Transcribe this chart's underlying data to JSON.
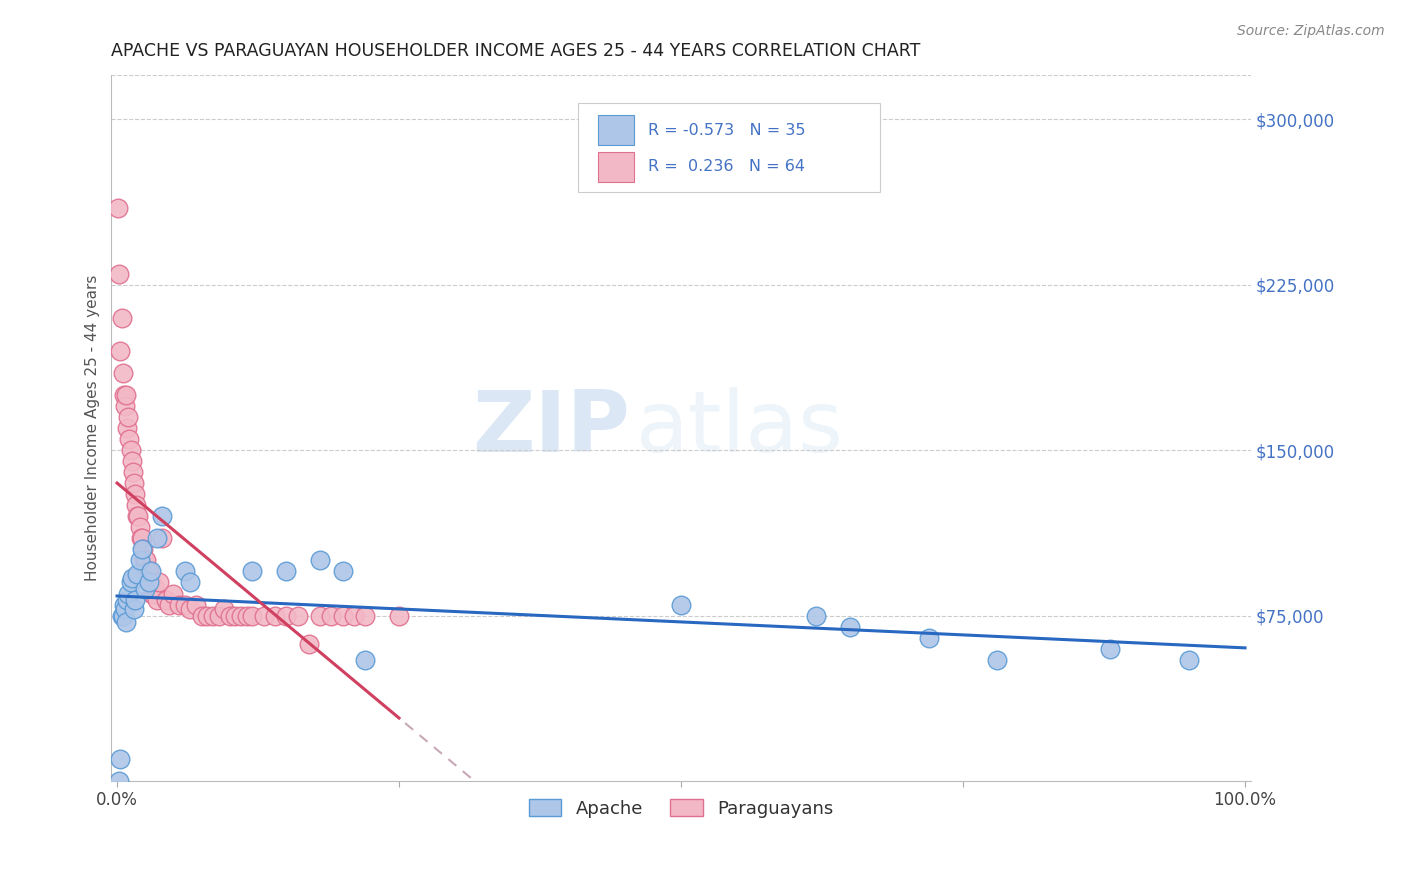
{
  "title": "APACHE VS PARAGUAYAN HOUSEHOLDER INCOME AGES 25 - 44 YEARS CORRELATION CHART",
  "source": "Source: ZipAtlas.com",
  "ylabel": "Householder Income Ages 25 - 44 years",
  "ytick_values": [
    75000,
    150000,
    225000,
    300000
  ],
  "ylim": [
    0,
    320000
  ],
  "xlim": [
    -0.005,
    1.005
  ],
  "apache_color": "#aec6e8",
  "apache_edge_color": "#5b9bd5",
  "paraguayan_color": "#f2b8c6",
  "paraguayan_edge_color": "#e07090",
  "trend_apache_color": "#2868c0",
  "trend_paraguayan_color": "#d04060",
  "trend_paraguayan_dashed_color": "#c8a8b8",
  "legend_label_apache": "Apache",
  "legend_label_paraguayan": "Paraguayans",
  "R_apache": -0.573,
  "N_apache": 35,
  "R_paraguayan": 0.236,
  "N_paraguayan": 64,
  "watermark_zip": "ZIP",
  "watermark_atlas": "atlas",
  "apache_x": [
    0.002,
    0.003,
    0.004,
    0.005,
    0.006,
    0.007,
    0.008,
    0.009,
    0.01,
    0.012,
    0.013,
    0.015,
    0.016,
    0.018,
    0.02,
    0.022,
    0.025,
    0.028,
    0.03,
    0.035,
    0.04,
    0.06,
    0.065,
    0.12,
    0.15,
    0.18,
    0.2,
    0.22,
    0.5,
    0.62,
    0.65,
    0.72,
    0.78,
    0.88,
    0.95
  ],
  "apache_y": [
    0,
    10000,
    75000,
    75000,
    80000,
    78000,
    72000,
    82000,
    85000,
    90000,
    92000,
    78000,
    82000,
    94000,
    100000,
    105000,
    87000,
    90000,
    95000,
    110000,
    120000,
    95000,
    90000,
    95000,
    95000,
    100000,
    95000,
    55000,
    80000,
    75000,
    70000,
    65000,
    55000,
    60000,
    55000
  ],
  "paraguayan_x": [
    0.001,
    0.002,
    0.003,
    0.004,
    0.005,
    0.006,
    0.007,
    0.008,
    0.009,
    0.01,
    0.011,
    0.012,
    0.013,
    0.014,
    0.015,
    0.016,
    0.017,
    0.018,
    0.019,
    0.02,
    0.021,
    0.022,
    0.023,
    0.024,
    0.025,
    0.026,
    0.027,
    0.028,
    0.029,
    0.03,
    0.031,
    0.032,
    0.033,
    0.035,
    0.037,
    0.04,
    0.043,
    0.046,
    0.05,
    0.055,
    0.06,
    0.065,
    0.07,
    0.075,
    0.08,
    0.085,
    0.09,
    0.095,
    0.1,
    0.105,
    0.11,
    0.115,
    0.12,
    0.13,
    0.14,
    0.15,
    0.16,
    0.17,
    0.18,
    0.19,
    0.2,
    0.21,
    0.22,
    0.25
  ],
  "paraguayan_y": [
    260000,
    230000,
    195000,
    210000,
    185000,
    175000,
    170000,
    175000,
    160000,
    165000,
    155000,
    150000,
    145000,
    140000,
    135000,
    130000,
    125000,
    120000,
    120000,
    115000,
    110000,
    110000,
    105000,
    100000,
    100000,
    100000,
    95000,
    95000,
    90000,
    90000,
    85000,
    85000,
    88000,
    82000,
    90000,
    110000,
    82000,
    80000,
    85000,
    80000,
    80000,
    78000,
    80000,
    75000,
    75000,
    75000,
    75000,
    78000,
    75000,
    75000,
    75000,
    75000,
    75000,
    75000,
    75000,
    75000,
    75000,
    62000,
    75000,
    75000,
    75000,
    75000,
    75000,
    75000
  ]
}
